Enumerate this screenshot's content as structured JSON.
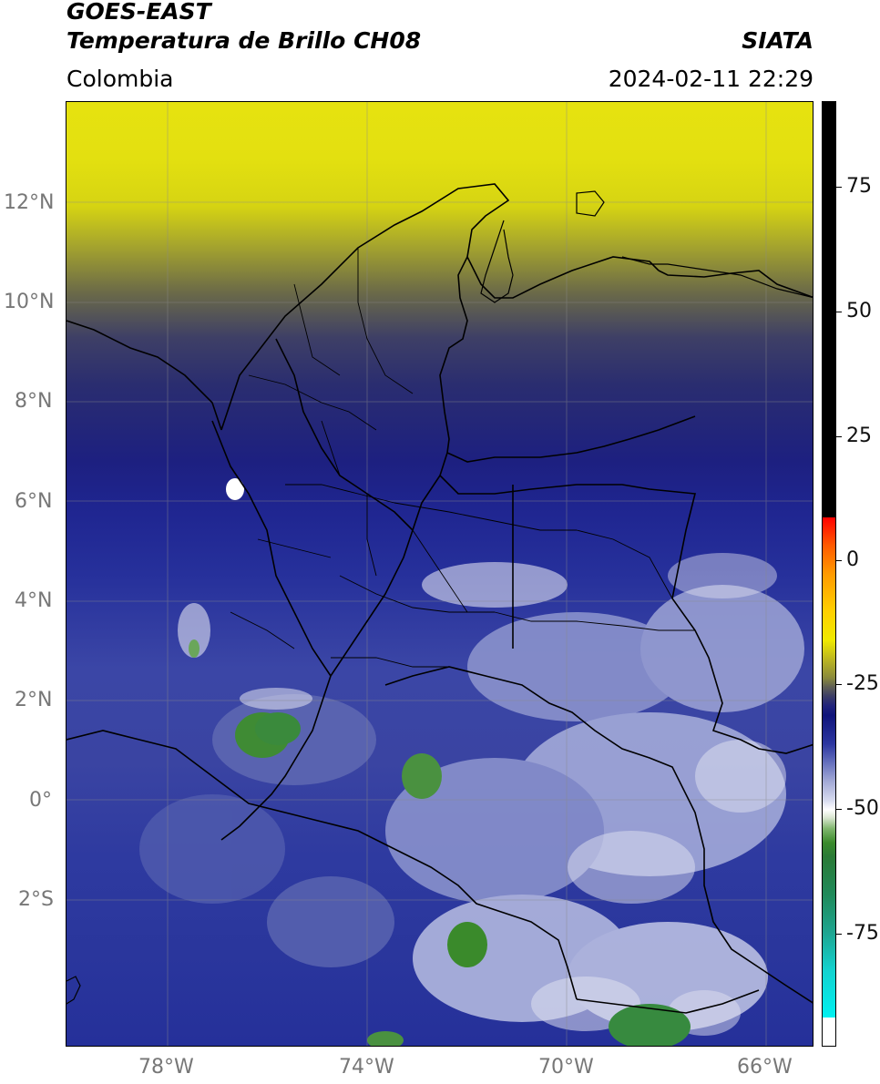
{
  "header": {
    "line1": "GOES-EAST",
    "line2": "Temperatura de Brillo CH08",
    "region": "Colombia",
    "brand": "SIATA",
    "timestamp": "2024-02-11 22:29"
  },
  "map": {
    "lat_ticks": [
      "12°N",
      "10°N",
      "8°N",
      "6°N",
      "4°N",
      "2°N",
      "0°",
      "2°S"
    ],
    "lon_ticks": [
      "78°W",
      "74°W",
      "70°W",
      "66°W"
    ]
  },
  "colorbar": {
    "ticks": [
      "75",
      "50",
      "25",
      "0",
      "-25",
      "-50",
      "-75"
    ],
    "colors": {
      "warm_top": "#000000",
      "red": "#ff0000",
      "yellow": "#f0ea00",
      "dark_blue": "#0f147a",
      "white": "#ffffff",
      "green": "#3a8a2b",
      "cyan": "#00f0f0"
    }
  }
}
